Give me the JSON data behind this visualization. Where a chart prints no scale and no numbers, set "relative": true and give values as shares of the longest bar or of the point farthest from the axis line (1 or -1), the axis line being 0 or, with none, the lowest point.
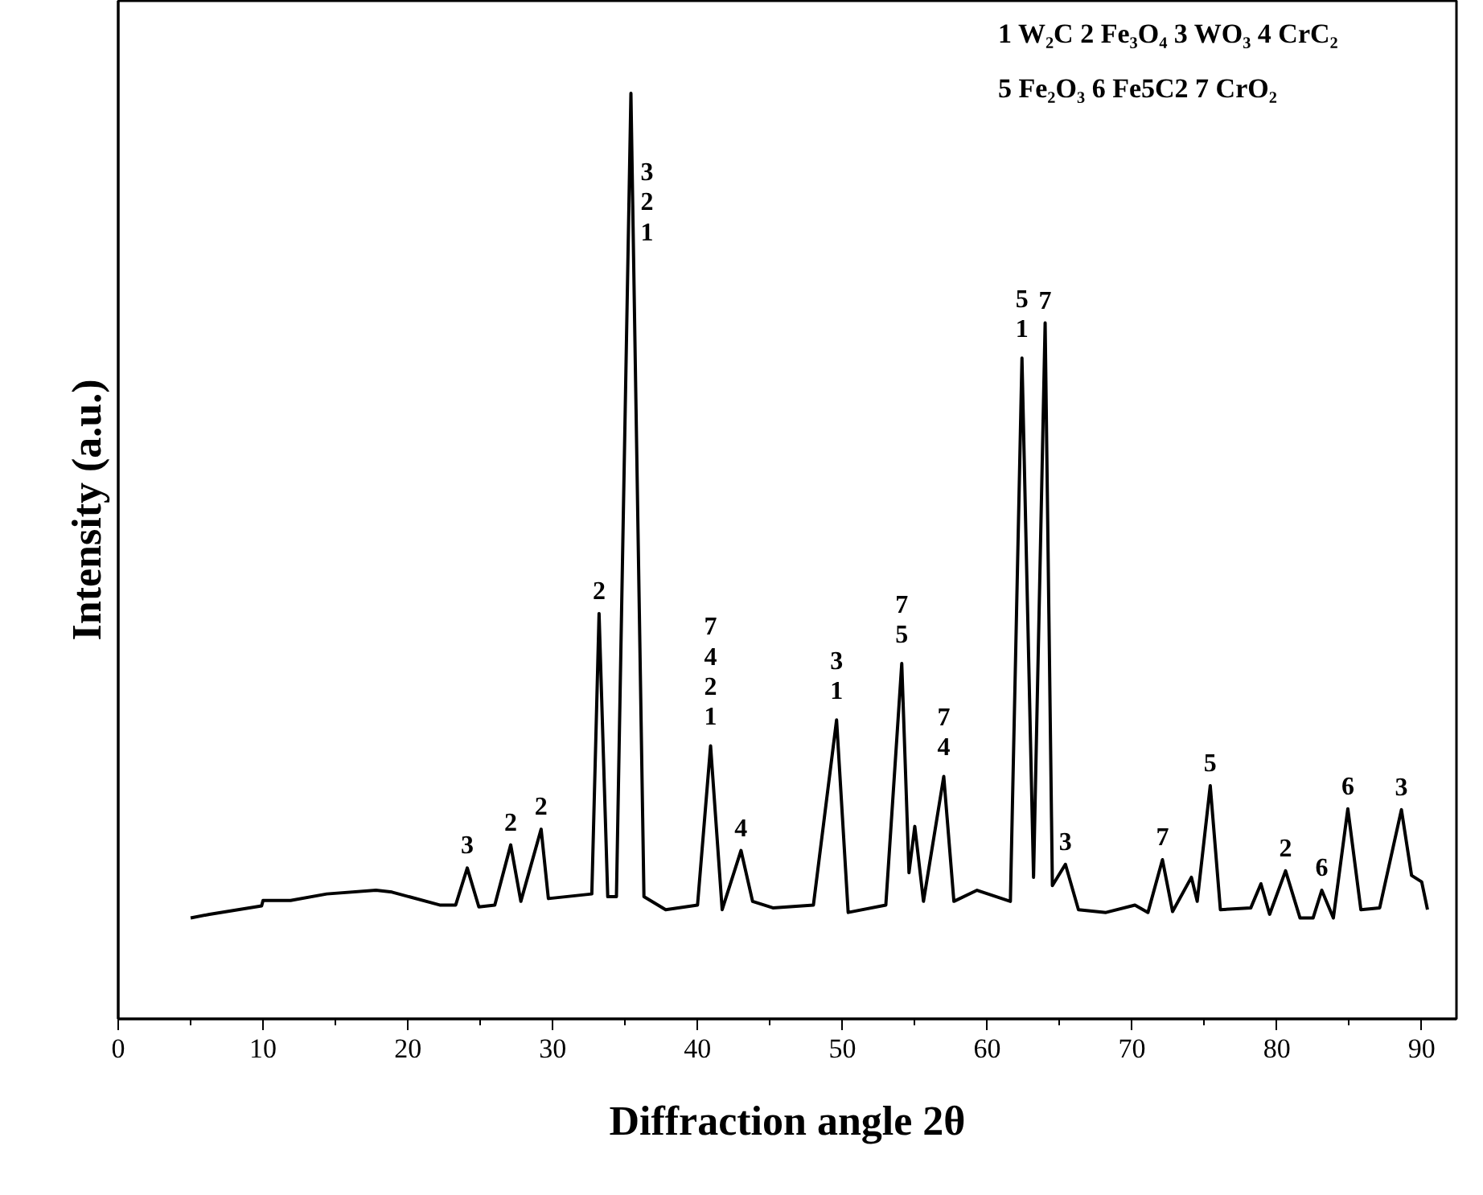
{
  "chart_data": {
    "type": "line",
    "relative": true,
    "xlabel": "Diffraction angle 2θ",
    "ylabel": "Intensity (a.u.)",
    "xlim": [
      0,
      92.4
    ],
    "xticks": [
      0,
      10,
      20,
      30,
      40,
      50,
      60,
      70,
      80,
      90
    ],
    "grid": false,
    "marker": "none",
    "line_style": "solid",
    "tick_labels": "x",
    "series": [
      {
        "color": "#000000",
        "x": [
          5.0,
          6.3,
          9.9,
          10.0,
          11.9,
          14.4,
          17.8,
          18.9,
          22.2,
          23.3,
          24.1,
          24.9,
          26.0,
          27.1,
          27.8,
          29.2,
          29.7,
          32.7,
          33.2,
          33.8,
          34.4,
          35.4,
          36.3,
          37.8,
          40.0,
          40.9,
          41.7,
          43.0,
          43.8,
          45.2,
          48.0,
          49.6,
          50.4,
          53.0,
          54.1,
          54.6,
          55.0,
          55.6,
          57.0,
          57.7,
          59.3,
          61.6,
          62.4,
          63.2,
          64.0,
          64.5,
          65.4,
          66.3,
          68.2,
          70.2,
          71.1,
          72.1,
          72.8,
          74.1,
          74.5,
          75.4,
          76.1,
          78.2,
          78.9,
          79.5,
          80.6,
          81.6,
          82.5,
          83.1,
          83.9,
          84.9,
          85.8,
          87.1,
          88.6,
          89.3,
          90.0,
          90.4
        ],
        "values": [
          0.109,
          0.113,
          0.122,
          0.128,
          0.128,
          0.135,
          0.139,
          0.137,
          0.123,
          0.123,
          0.163,
          0.121,
          0.123,
          0.188,
          0.127,
          0.205,
          0.13,
          0.135,
          0.438,
          0.132,
          0.132,
          1.0,
          0.132,
          0.118,
          0.123,
          0.295,
          0.118,
          0.182,
          0.127,
          0.12,
          0.123,
          0.323,
          0.115,
          0.123,
          0.384,
          0.158,
          0.208,
          0.127,
          0.262,
          0.127,
          0.139,
          0.127,
          0.714,
          0.153,
          0.752,
          0.144,
          0.167,
          0.118,
          0.115,
          0.123,
          0.115,
          0.172,
          0.116,
          0.153,
          0.127,
          0.252,
          0.118,
          0.12,
          0.146,
          0.113,
          0.16,
          0.109,
          0.109,
          0.139,
          0.109,
          0.227,
          0.118,
          0.12,
          0.226,
          0.155,
          0.148,
          0.118
        ]
      }
    ],
    "annotations": [
      {
        "text": "3",
        "x": 24.1,
        "y": 0.163
      },
      {
        "text": "2",
        "x": 27.1,
        "y": 0.188
      },
      {
        "text": "2",
        "x": 29.2,
        "y": 0.205
      },
      {
        "text": "2",
        "x": 33.2,
        "y": 0.438
      },
      {
        "text": "3\n2\n1",
        "x": 35.4,
        "y": 1.0
      },
      {
        "text": "7\n4\n2\n1",
        "x": 40.9,
        "y": 0.295
      },
      {
        "text": "4",
        "x": 43.0,
        "y": 0.182
      },
      {
        "text": "3\n1",
        "x": 49.6,
        "y": 0.323
      },
      {
        "text": "7\n5",
        "x": 54.1,
        "y": 0.384
      },
      {
        "text": "7\n4",
        "x": 57.0,
        "y": 0.262
      },
      {
        "text": "5\n1",
        "x": 62.4,
        "y": 0.714
      },
      {
        "text": "7",
        "x": 64.0,
        "y": 0.752
      },
      {
        "text": "3",
        "x": 65.4,
        "y": 0.167
      },
      {
        "text": "7",
        "x": 72.1,
        "y": 0.172
      },
      {
        "text": "5",
        "x": 75.4,
        "y": 0.252
      },
      {
        "text": "2",
        "x": 80.6,
        "y": 0.16
      },
      {
        "text": "6",
        "x": 83.1,
        "y": 0.139
      },
      {
        "text": "6",
        "x": 84.9,
        "y": 0.227
      },
      {
        "text": "3",
        "x": 88.6,
        "y": 0.226
      },
      "1 W₂C  2 Fe₃O₄ 3 WO₃  4 CrC₂",
      "5 Fe₂O₃  6 Fe5C2  7 CrO₂"
    ]
  }
}
